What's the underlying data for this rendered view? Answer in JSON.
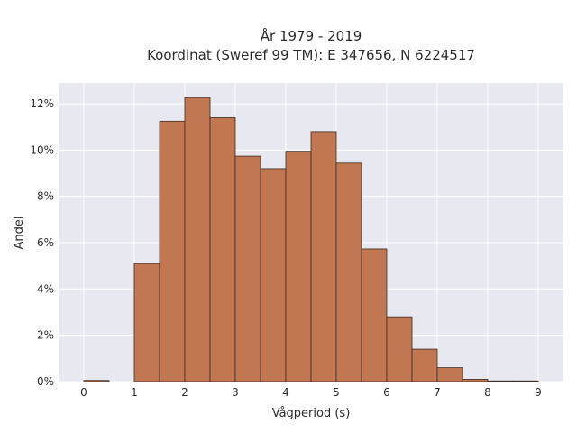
{
  "chart_data": {
    "type": "bar",
    "title": "År 1979 - 2019",
    "subtitle": "Koordinat (Sweref 99 TM): E 347656, N 6224517",
    "xlabel": "Vågperiod (s)",
    "ylabel": "Andel",
    "xlim": [
      -0.5,
      9.5
    ],
    "ylim": [
      0,
      12.9
    ],
    "x_ticks": [
      0,
      1,
      2,
      3,
      4,
      5,
      6,
      7,
      8,
      9
    ],
    "y_ticks": [
      0,
      2,
      4,
      6,
      8,
      10,
      12
    ],
    "y_tick_labels": [
      "0%",
      "2%",
      "4%",
      "6%",
      "8%",
      "10%",
      "12%"
    ],
    "bin_width": 0.5,
    "bin_starts": [
      0,
      0.5,
      1,
      1.5,
      2,
      2.5,
      3,
      3.5,
      4,
      4.5,
      5,
      5.5,
      6,
      6.5,
      7,
      7.5,
      8,
      8.5
    ],
    "values": [
      0.05,
      0,
      5.1,
      11.25,
      12.27,
      11.4,
      9.74,
      9.2,
      9.95,
      10.8,
      9.44,
      5.73,
      2.8,
      1.4,
      0.6,
      0.1,
      0.03,
      0.03
    ],
    "colors": {
      "bar_fill": "#c07752",
      "bar_edge": "#3b2a20",
      "plot_bg": "#e8e8f0",
      "grid": "#ffffff"
    },
    "grid": true,
    "legend": false
  }
}
